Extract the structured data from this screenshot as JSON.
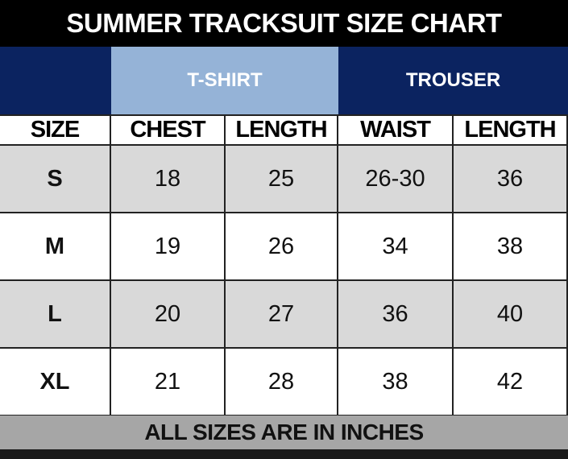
{
  "title": "SUMMER TRACKSUIT SIZE CHART",
  "groups": [
    {
      "label": "",
      "color": "#0b2360"
    },
    {
      "label": "T-SHIRT",
      "color": "#95b3d7"
    },
    {
      "label": "TROUSER",
      "color": "#0b2360"
    }
  ],
  "columns": [
    "SIZE",
    "CHEST",
    "LENGTH",
    "WAIST",
    "LENGTH"
  ],
  "rows": [
    [
      "S",
      "18",
      "25",
      "26-30",
      "36"
    ],
    [
      "M",
      "19",
      "26",
      "34",
      "38"
    ],
    [
      "L",
      "20",
      "27",
      "36",
      "40"
    ],
    [
      "XL",
      "21",
      "28",
      "38",
      "42"
    ]
  ],
  "row_colors": [
    "#d9d9d9",
    "#ffffff"
  ],
  "footer": "ALL SIZES ARE IN INCHES"
}
